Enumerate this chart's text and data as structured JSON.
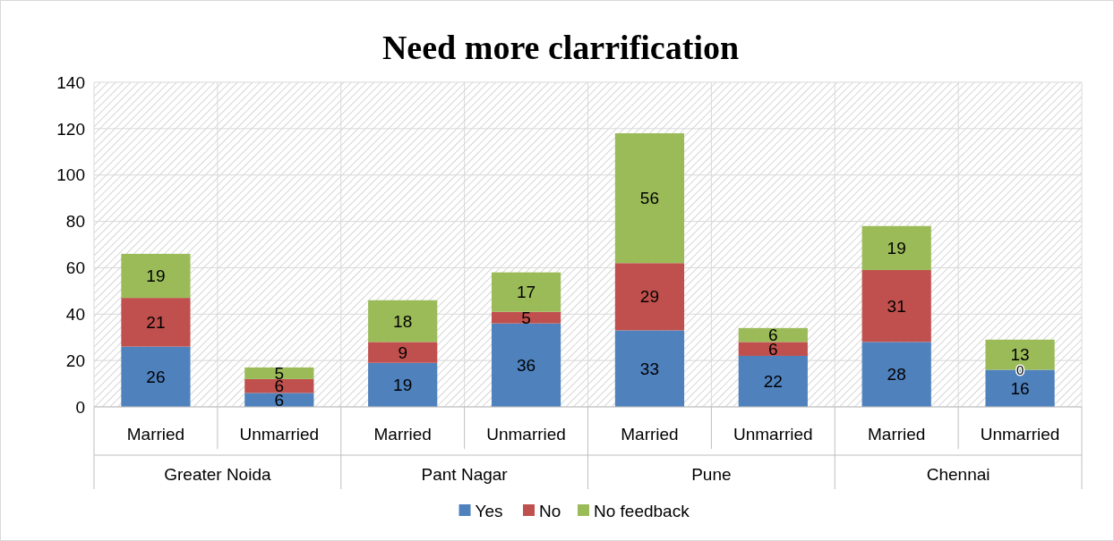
{
  "chart_data": {
    "type": "bar",
    "title": "Need more clarrification",
    "stacked": true,
    "categories": [
      "Married",
      "Unmarried",
      "Married",
      "Unmarried",
      "Married",
      "Unmarried",
      "Married",
      "Unmarried"
    ],
    "annotations": [
      "Greater Noida",
      "Pant Nagar",
      "Pune",
      "Chennai"
    ],
    "series": [
      {
        "name": "Yes",
        "color": "#4f81bd",
        "values": [
          26,
          6,
          19,
          36,
          33,
          22,
          28,
          16
        ]
      },
      {
        "name": "No",
        "color": "#c0504d",
        "values": [
          21,
          6,
          9,
          5,
          29,
          6,
          31,
          0
        ]
      },
      {
        "name": "No feedback",
        "color": "#9bbb59",
        "values": [
          19,
          5,
          18,
          17,
          56,
          6,
          19,
          13
        ]
      }
    ],
    "ylim": [
      0,
      140
    ],
    "yticks": [
      0,
      20,
      40,
      60,
      80,
      100,
      120,
      140
    ],
    "grid": true,
    "legend": "bottom",
    "data_labels": true
  }
}
